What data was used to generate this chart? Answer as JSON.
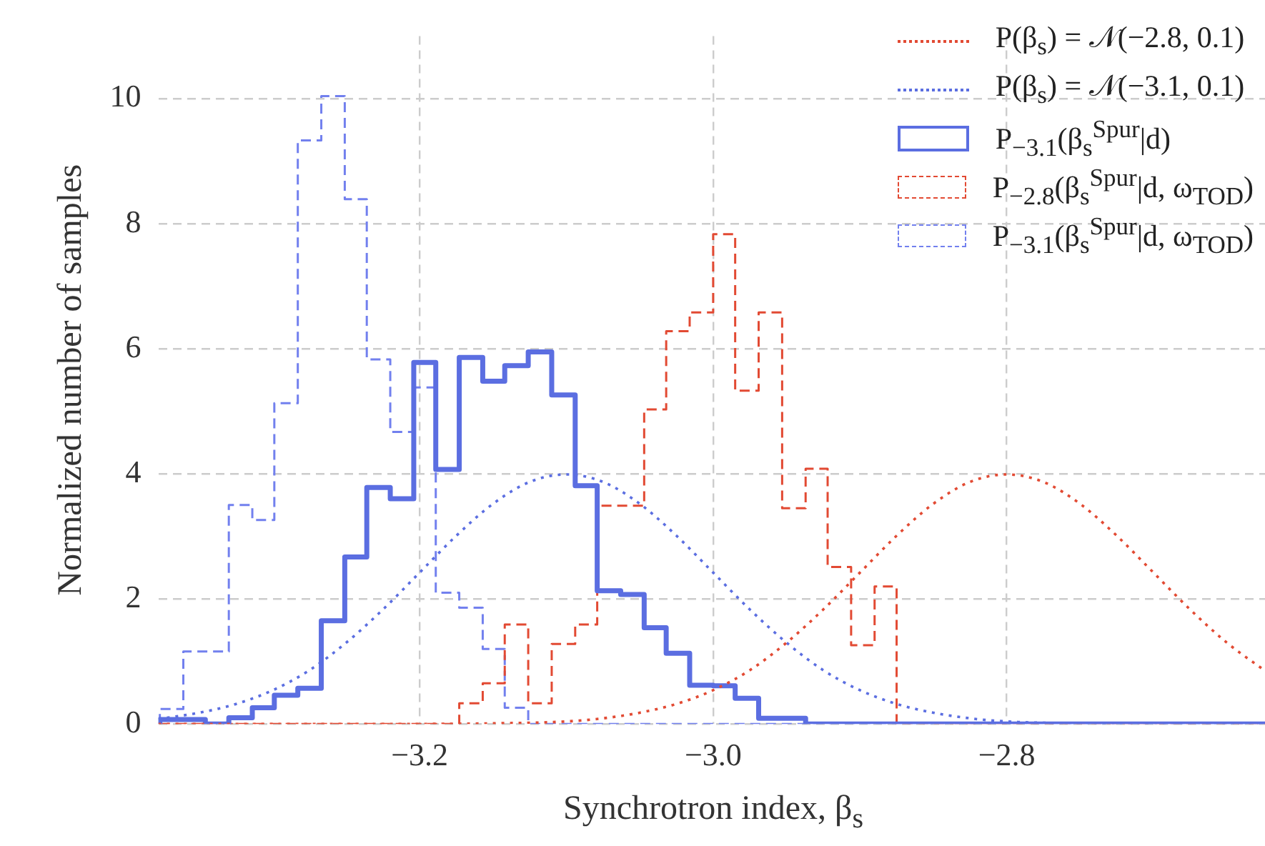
{
  "chart_data": {
    "type": "histogram",
    "xlabel": "Synchrotron index, β$_{s}$",
    "ylabel": "Normalized number of samples",
    "bins": [
      -3.377,
      -3.361,
      -3.346,
      -3.33,
      -3.314,
      -3.299,
      -3.283,
      -3.267,
      -3.251,
      -3.236,
      -3.22,
      -3.204,
      -3.189,
      -3.173,
      -3.157,
      -3.142,
      -3.126,
      -3.11,
      -3.094,
      -3.079,
      -3.063,
      -3.047,
      -3.032,
      -3.016,
      -3.0,
      -2.985,
      -2.969,
      -2.953,
      -2.937,
      -2.922,
      -2.906,
      -2.89,
      -2.875,
      -2.859,
      -2.843,
      -2.828,
      -2.812,
      -2.796,
      -2.78,
      -2.765,
      -2.749,
      -2.733,
      -2.718,
      -2.702,
      -2.686,
      -2.671,
      -2.655,
      -2.639,
      -2.623
    ],
    "series": [
      {
        "name": "P(β$_{s}$) = 𝒩(−2.8, 0.1)",
        "type": "line",
        "line_style": "dotted",
        "color": "#e24a33",
        "x": [
          -3.378,
          -3.2,
          -3.15,
          -3.1,
          -3.075,
          -3.05,
          -3.025,
          -3.0,
          -2.975,
          -2.95,
          -2.925,
          -2.9,
          -2.875,
          -2.85,
          -2.825,
          -2.8,
          -2.775,
          -2.75,
          -2.725,
          -2.7,
          -2.675,
          -2.65,
          -2.624
        ],
        "values": [
          0,
          0,
          0.01,
          0.04,
          0.09,
          0.18,
          0.32,
          0.54,
          0.86,
          1.3,
          1.83,
          2.42,
          3.01,
          3.52,
          3.87,
          3.99,
          3.87,
          3.52,
          3.01,
          2.42,
          1.83,
          1.3,
          0.85
        ]
      },
      {
        "name": "P(β$_{s}$) = 𝒩(−3.1, 0.1)",
        "type": "line",
        "line_style": "dotted",
        "color": "#5b6ee1",
        "x": [
          -3.378,
          -3.35,
          -3.325,
          -3.3,
          -3.275,
          -3.25,
          -3.225,
          -3.2,
          -3.175,
          -3.15,
          -3.125,
          -3.1,
          -3.075,
          -3.05,
          -3.025,
          -3.0,
          -2.975,
          -2.95,
          -2.925,
          -2.9,
          -2.875,
          -2.85,
          -2.825,
          -2.8,
          -2.75,
          -2.7,
          -2.624
        ],
        "values": [
          0.08,
          0.18,
          0.32,
          0.54,
          0.86,
          1.3,
          1.83,
          2.42,
          3.01,
          3.52,
          3.87,
          3.99,
          3.87,
          3.52,
          3.01,
          2.42,
          1.83,
          1.3,
          0.86,
          0.54,
          0.32,
          0.18,
          0.09,
          0.04,
          0.01,
          0,
          0
        ]
      },
      {
        "name": "P$_{−3.1}$(β$_{s}$$^{Spur}$|d)",
        "line_style": "solid",
        "color": "#5b6ee1",
        "values": [
          0.07,
          0.07,
          0,
          0.1,
          0.26,
          0.46,
          0.57,
          1.65,
          2.67,
          3.78,
          3.6,
          5.78,
          4.07,
          5.86,
          5.48,
          5.73,
          5.95,
          5.26,
          3.81,
          2.13,
          2.07,
          1.54,
          1.13,
          0.62,
          0.61,
          0.41,
          0.09,
          0.09,
          0,
          0,
          0,
          0,
          0,
          0,
          0,
          0,
          0,
          0,
          0,
          0,
          0,
          0,
          0,
          0,
          0,
          0,
          0,
          0
        ]
      },
      {
        "name": "P$_{−2.8}$(β$_{s}$$^{Spur}$|d, ω$_{TOD}$)",
        "line_style": "dashed",
        "color": "#e24a33",
        "values": [
          0,
          0,
          0,
          0,
          0,
          0,
          0,
          0,
          0,
          0,
          0,
          0,
          0,
          0.33,
          0.65,
          1.59,
          0.33,
          1.28,
          1.59,
          3.49,
          3.49,
          5.03,
          6.28,
          6.58,
          7.83,
          5.33,
          6.58,
          3.45,
          4.08,
          2.51,
          1.26,
          2.2,
          0,
          0,
          0,
          0,
          0,
          0,
          0,
          0,
          0,
          0,
          0,
          0,
          0,
          0,
          0,
          0
        ]
      },
      {
        "name": "P$_{−3.1}$(β$_{s}$$^{Spur}$|d, ω$_{TOD}$)",
        "line_style": "dashed",
        "color": "#7280ee",
        "values": [
          0.24,
          1.16,
          1.16,
          3.5,
          3.26,
          5.13,
          9.33,
          10.04,
          8.39,
          5.83,
          4.67,
          5.38,
          2.1,
          1.86,
          1.2,
          0.26,
          0,
          0,
          0,
          0,
          0,
          0,
          0,
          0,
          0,
          0,
          0,
          0,
          0,
          0,
          0,
          0,
          0,
          0,
          0,
          0,
          0,
          0,
          0,
          0,
          0,
          0,
          0,
          0,
          0,
          0,
          0,
          0
        ]
      }
    ],
    "xlim": [
      -3.378,
      -2.624
    ],
    "xticks": [
      {
        "value": -3.2,
        "label": "−3.2"
      },
      {
        "value": -3.0,
        "label": "−3.0"
      },
      {
        "value": -2.8,
        "label": "−2.8"
      }
    ],
    "ylim": [
      0,
      11
    ],
    "yticks": [
      0,
      2,
      4,
      6,
      8,
      10
    ],
    "grid": true,
    "legend": "top right"
  }
}
